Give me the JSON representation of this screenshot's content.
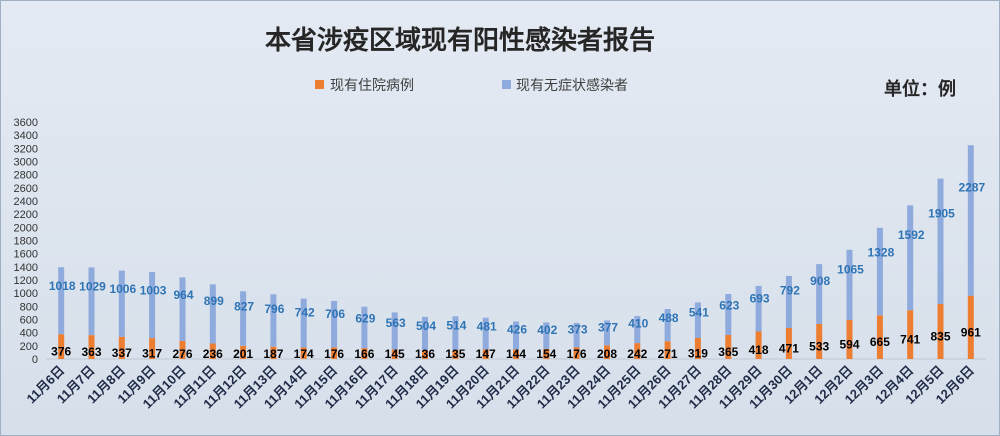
{
  "chart_data": {
    "type": "bar",
    "stacked": true,
    "title": "本省涉疫区域现有阳性感染者报告",
    "unit_label": "单位：例",
    "legend_position": "top",
    "grid": false,
    "ylim": [
      0,
      3600
    ],
    "yticks": [
      0,
      200,
      400,
      600,
      800,
      1000,
      1200,
      1400,
      1600,
      1800,
      2000,
      2200,
      2400,
      2600,
      2800,
      3000,
      3200,
      3400,
      3600
    ],
    "categories": [
      "11月6日",
      "11月7日",
      "11月8日",
      "11月9日",
      "11月10日",
      "11月11日",
      "11月12日",
      "11月13日",
      "11月14日",
      "11月15日",
      "11月16日",
      "11月17日",
      "11月18日",
      "11月19日",
      "11月20日",
      "11月21日",
      "11月22日",
      "11月23日",
      "11月24日",
      "11月25日",
      "11月26日",
      "11月27日",
      "11月28日",
      "11月29日",
      "11月30日",
      "12月1日",
      "12月2日",
      "12月3日",
      "12月4日",
      "12月5日",
      "12月6日"
    ],
    "series": [
      {
        "name": "现有住院病例",
        "color": "#ed7d31",
        "label_color": "#000000",
        "values": [
          376,
          363,
          337,
          317,
          276,
          236,
          201,
          187,
          174,
          176,
          166,
          145,
          136,
          135,
          147,
          144,
          154,
          176,
          208,
          242,
          271,
          319,
          365,
          418,
          471,
          533,
          594,
          665,
          741,
          835,
          961
        ]
      },
      {
        "name": "现有无症状感染者",
        "color": "#8faadc",
        "label_color": "#2e74b5",
        "values": [
          1018,
          1029,
          1006,
          1003,
          964,
          899,
          827,
          796,
          742,
          706,
          629,
          563,
          504,
          514,
          481,
          426,
          402,
          373,
          377,
          410,
          488,
          541,
          623,
          693,
          792,
          908,
          1065,
          1328,
          1592,
          1905,
          2287
        ]
      }
    ]
  }
}
